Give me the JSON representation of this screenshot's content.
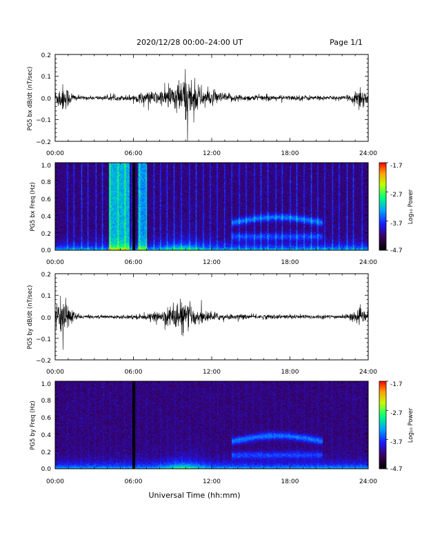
{
  "header": {
    "title": "2020/12/28  00:00–24:00 UT",
    "page": "Page 1/1"
  },
  "xlabel": "Universal Time (hh:mm)",
  "x_ticks": [
    "00:00",
    "06:00",
    "12:00",
    "18:00",
    "24:00"
  ],
  "colorbar": {
    "label": "Log₁₀ Power",
    "ticks": [
      "-1.7",
      "-2.7",
      "-3.7",
      "-4.7"
    ],
    "range": [
      -4.7,
      -1.7
    ]
  },
  "chart_data": [
    {
      "type": "line",
      "ylabel": "PG5 bx dB/dt (nT/sec)",
      "xlim": [
        0,
        24
      ],
      "ylim": [
        -0.2,
        0.2
      ],
      "y_ticks": [
        "0.2",
        "0.1",
        "0.0",
        "−0.1",
        "−0.2"
      ],
      "envelope": {
        "x_hours": [
          0,
          0.5,
          1,
          1.5,
          2,
          3,
          4,
          5,
          6,
          6.5,
          7,
          8,
          8.5,
          9,
          9.5,
          10,
          10.5,
          11,
          11.5,
          12,
          13,
          14,
          15,
          16,
          17,
          18,
          19,
          20,
          21,
          22,
          22.5,
          23,
          23.3,
          23.6,
          24
        ],
        "amplitude": [
          0.03,
          0.06,
          0.04,
          0.015,
          0.008,
          0.008,
          0.01,
          0.01,
          0.015,
          0.02,
          0.025,
          0.03,
          0.04,
          0.06,
          0.07,
          0.1,
          0.08,
          0.05,
          0.04,
          0.03,
          0.02,
          0.015,
          0.012,
          0.012,
          0.01,
          0.01,
          0.012,
          0.01,
          0.008,
          0.008,
          0.01,
          0.03,
          0.06,
          0.04,
          0.02
        ]
      }
    },
    {
      "type": "heatmap",
      "ylabel": "PG5 bx Freq (Hz)",
      "xlim": [
        0,
        24
      ],
      "ylim": [
        0,
        1
      ],
      "y_ticks": [
        "1.0",
        "0.8",
        "0.6",
        "0.4",
        "0.2",
        "0.0"
      ]
    },
    {
      "type": "line",
      "ylabel": "PG5 by dB/dt (nT/sec)",
      "xlim": [
        0,
        24
      ],
      "ylim": [
        -0.2,
        0.2
      ],
      "y_ticks": [
        "0.2",
        "0.1",
        "0.0",
        "−0.1",
        "−0.2"
      ],
      "envelope": {
        "x_hours": [
          0,
          0.5,
          1,
          1.5,
          2,
          3,
          4,
          5,
          6,
          7,
          8,
          8.5,
          9,
          9.5,
          10,
          10.5,
          11,
          12,
          13,
          14,
          15,
          16,
          17,
          18,
          19,
          20,
          21,
          22,
          23,
          23.5,
          24
        ],
        "amplitude": [
          0.03,
          0.08,
          0.05,
          0.02,
          0.008,
          0.006,
          0.007,
          0.007,
          0.01,
          0.012,
          0.02,
          0.04,
          0.05,
          0.07,
          0.06,
          0.04,
          0.03,
          0.02,
          0.012,
          0.01,
          0.01,
          0.01,
          0.009,
          0.009,
          0.01,
          0.009,
          0.008,
          0.008,
          0.02,
          0.03,
          0.02
        ]
      }
    },
    {
      "type": "heatmap",
      "ylabel": "PG5 by Freq (Hz)",
      "xlim": [
        0,
        24
      ],
      "ylim": [
        0,
        1
      ],
      "y_ticks": [
        "1.0",
        "0.8",
        "0.6",
        "0.4",
        "0.2",
        "0.0"
      ]
    }
  ]
}
